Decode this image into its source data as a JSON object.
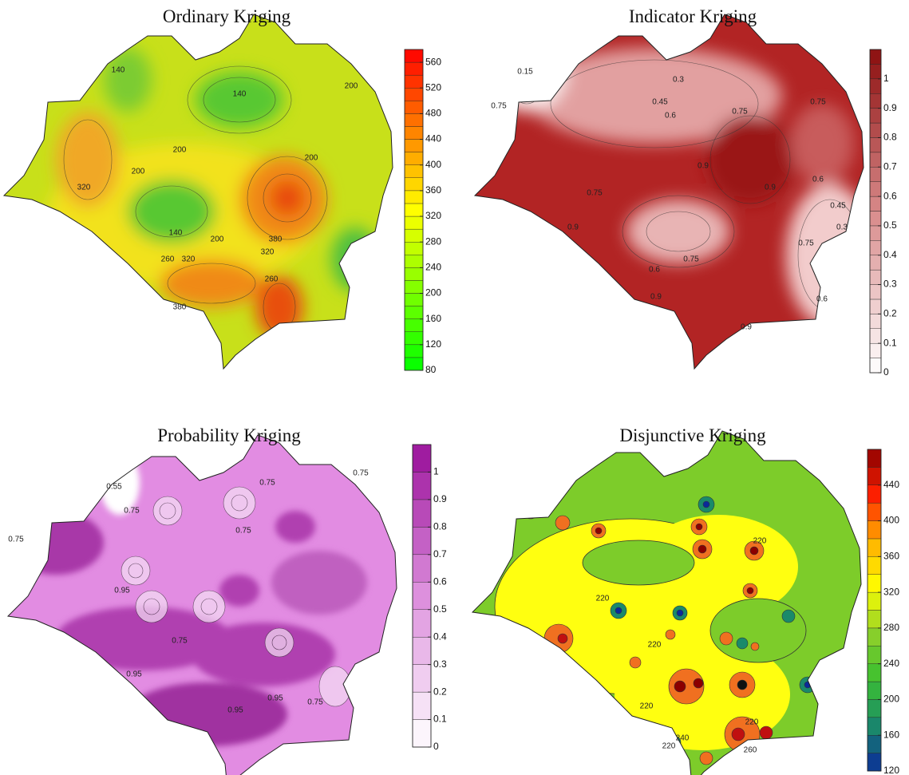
{
  "panels": [
    {
      "title": "Ordinary Kriging",
      "colorbar": {
        "lim": [
          80,
          580
        ],
        "ticks": [
          80,
          120,
          160,
          200,
          240,
          280,
          320,
          360,
          400,
          440,
          480,
          520,
          560
        ],
        "band_step": 20,
        "colors": [
          "#00ff00",
          "#ffff00",
          "#ff0000"
        ]
      },
      "contour_labels": [
        140,
        200,
        140,
        200,
        320,
        200,
        140,
        200,
        260,
        320,
        320,
        380,
        260,
        200,
        380
      ]
    },
    {
      "title": "Indicator Kriging",
      "colorbar": {
        "lim": [
          0,
          1.1
        ],
        "ticks": [
          0,
          0.1,
          0.2,
          0.3,
          0.4,
          0.5,
          0.6,
          0.7,
          0.8,
          0.9,
          1
        ],
        "band_step": 0.05,
        "colors": [
          "#ffffff",
          "#d88a8a",
          "#8b0e0e"
        ]
      },
      "contour_labels": [
        0.15,
        0.3,
        0.75,
        0.45,
        0.6,
        0.75,
        0.9,
        0.9,
        0.75,
        0.6,
        0.45,
        0.3,
        0.75,
        0.9,
        0.75,
        0.6,
        0.9,
        0.75,
        0.6,
        0.9
      ]
    },
    {
      "title": "Probability Kriging",
      "colorbar": {
        "lim": [
          0,
          1.1
        ],
        "ticks": [
          0,
          0.1,
          0.2,
          0.3,
          0.4,
          0.5,
          0.6,
          0.7,
          0.8,
          0.9,
          1
        ],
        "band_step": 0.1,
        "colors": [
          "#ffffff",
          "#dd90dd",
          "#99109a"
        ]
      },
      "contour_labels": [
        0.55,
        0.75,
        0.75,
        0.75,
        0.75,
        0.75,
        0.95,
        0.75,
        0.95,
        0.95,
        0.95,
        0.75
      ]
    },
    {
      "title": "Disjunctive Kriging",
      "colorbar": {
        "lim": [
          120,
          480
        ],
        "ticks": [
          120,
          160,
          200,
          240,
          280,
          320,
          360,
          400,
          440
        ],
        "band_step": 20,
        "colors": [
          "#0a2a9a",
          "#1a8a6a",
          "#3cc030",
          "#8ed02a",
          "#ffff00",
          "#ffb000",
          "#ff2000",
          "#8b0000"
        ]
      },
      "contour_labels": [
        220,
        220,
        220,
        220,
        220,
        240,
        220,
        260
      ]
    }
  ]
}
